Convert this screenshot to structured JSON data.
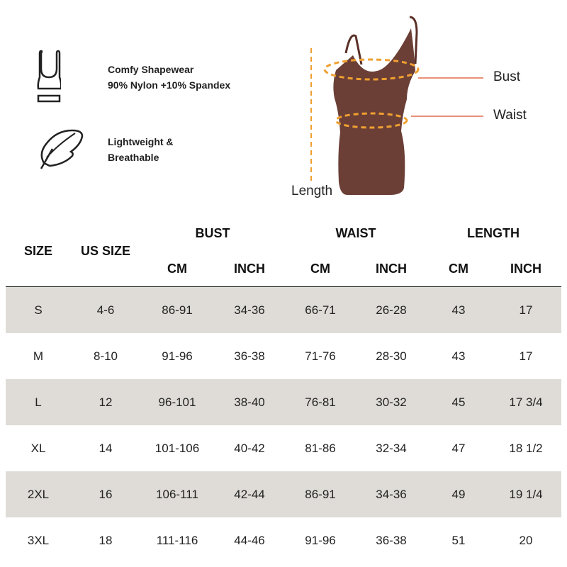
{
  "features": [
    {
      "icon": "sports-bra-icon",
      "lines": [
        "Comfy Shapewear",
        "90% Nylon +10% Spandex"
      ]
    },
    {
      "icon": "feather-icon",
      "lines": [
        "Lightweight &",
        "Breathable"
      ]
    }
  ],
  "diagram": {
    "bust": "Bust",
    "waist": "Waist",
    "length": "Length",
    "garment_color": "#6b3f36",
    "measure_color": "#f0a030",
    "pointer_color": "#e8907a"
  },
  "table": {
    "headers": {
      "size": "SIZE",
      "us_size": "US SIZE",
      "bust": "BUST",
      "waist": "WAIST",
      "length": "LENGTH",
      "cm": "CM",
      "inch": "INCH"
    },
    "stripe_color": "#dfdcd7",
    "rows": [
      [
        "S",
        "4-6",
        "86-91",
        "34-36",
        "66-71",
        "26-28",
        "43",
        "17"
      ],
      [
        "M",
        "8-10",
        "91-96",
        "36-38",
        "71-76",
        "28-30",
        "43",
        "17"
      ],
      [
        "L",
        "12",
        "96-101",
        "38-40",
        "76-81",
        "30-32",
        "45",
        "17 3/4"
      ],
      [
        "XL",
        "14",
        "101-106",
        "40-42",
        "81-86",
        "32-34",
        "47",
        "18 1/2"
      ],
      [
        "2XL",
        "16",
        "106-111",
        "42-44",
        "86-91",
        "34-36",
        "49",
        "19 1/4"
      ],
      [
        "3XL",
        "18",
        "111-116",
        "44-46",
        "91-96",
        "36-38",
        "51",
        "20"
      ]
    ]
  }
}
